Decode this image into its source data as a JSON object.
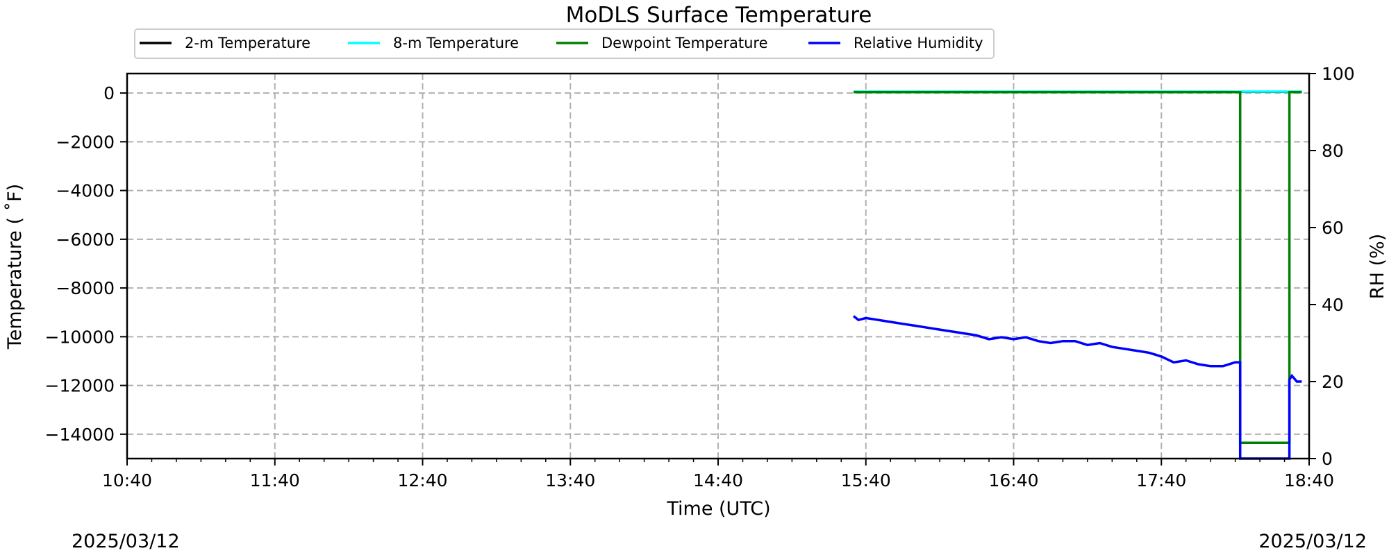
{
  "chart_data": {
    "type": "line",
    "title": "MoDLS Surface Temperature",
    "xlabel": "Time (UTC)",
    "ylabel": "Temperature ($^\\circ$F)",
    "ylabel_display": "Temperature ( ˚F)",
    "y2label": "RH (%)",
    "x_range": [
      "10:40",
      "18:40"
    ],
    "x_ticks": [
      "10:40",
      "11:40",
      "12:40",
      "13:40",
      "14:40",
      "15:40",
      "16:40",
      "17:40",
      "18:40"
    ],
    "date_left": "2025/03/12",
    "date_right": "2025/03/12",
    "ylim": [
      -15000,
      800
    ],
    "y_ticks": [
      0,
      -2000,
      -4000,
      -6000,
      -8000,
      -10000,
      -12000,
      -14000
    ],
    "y_tick_labels": [
      "0",
      "−2000",
      "−4000",
      "−6000",
      "−8000",
      "−10000",
      "−12000",
      "−14000"
    ],
    "y2lim": [
      0,
      100
    ],
    "y2_ticks": [
      0,
      20,
      40,
      60,
      80,
      100
    ],
    "y2_tick_labels": [
      "0",
      "20",
      "40",
      "60",
      "80",
      "100"
    ],
    "grid": true,
    "legend_position": "top, above plot",
    "series": [
      {
        "name": "2-m Temperature",
        "color": "#000000",
        "axis": "left",
        "points": [
          [
            "15:35",
            50
          ],
          [
            "18:37",
            50
          ]
        ]
      },
      {
        "name": "8-m Temperature",
        "color": "#00ffff",
        "axis": "left",
        "points": [
          [
            "15:35",
            60
          ],
          [
            "18:37",
            60
          ]
        ]
      },
      {
        "name": "Dewpoint Temperature",
        "color": "#008000",
        "axis": "left",
        "points": [
          [
            "15:35",
            40
          ],
          [
            "18:12",
            40
          ],
          [
            "18:12",
            -14350
          ],
          [
            "18:32",
            -14350
          ],
          [
            "18:32",
            40
          ],
          [
            "18:37",
            40
          ]
        ]
      },
      {
        "name": "Relative Humidity",
        "color": "#0000ff",
        "axis": "right",
        "points": [
          [
            "15:35",
            37
          ],
          [
            "15:37",
            36
          ],
          [
            "15:40",
            36.5
          ],
          [
            "15:45",
            36
          ],
          [
            "15:50",
            35.5
          ],
          [
            "15:55",
            35
          ],
          [
            "16:00",
            34.5
          ],
          [
            "16:05",
            34
          ],
          [
            "16:10",
            33.5
          ],
          [
            "16:15",
            33
          ],
          [
            "16:20",
            32.5
          ],
          [
            "16:25",
            32
          ],
          [
            "16:30",
            31
          ],
          [
            "16:35",
            31.5
          ],
          [
            "16:40",
            31
          ],
          [
            "16:45",
            31.5
          ],
          [
            "16:50",
            30.5
          ],
          [
            "16:55",
            30
          ],
          [
            "17:00",
            30.5
          ],
          [
            "17:05",
            30.5
          ],
          [
            "17:10",
            29.5
          ],
          [
            "17:15",
            30
          ],
          [
            "17:20",
            29
          ],
          [
            "17:25",
            28.5
          ],
          [
            "17:30",
            28
          ],
          [
            "17:35",
            27.5
          ],
          [
            "17:40",
            26.5
          ],
          [
            "17:45",
            25
          ],
          [
            "17:50",
            25.5
          ],
          [
            "17:55",
            24.5
          ],
          [
            "18:00",
            24
          ],
          [
            "18:05",
            24
          ],
          [
            "18:10",
            25
          ],
          [
            "18:12",
            25
          ],
          [
            "18:12",
            0
          ],
          [
            "18:32",
            0
          ],
          [
            "18:32",
            20.5
          ],
          [
            "18:33",
            21.5
          ],
          [
            "18:35",
            20
          ],
          [
            "18:37",
            20
          ]
        ]
      }
    ]
  }
}
